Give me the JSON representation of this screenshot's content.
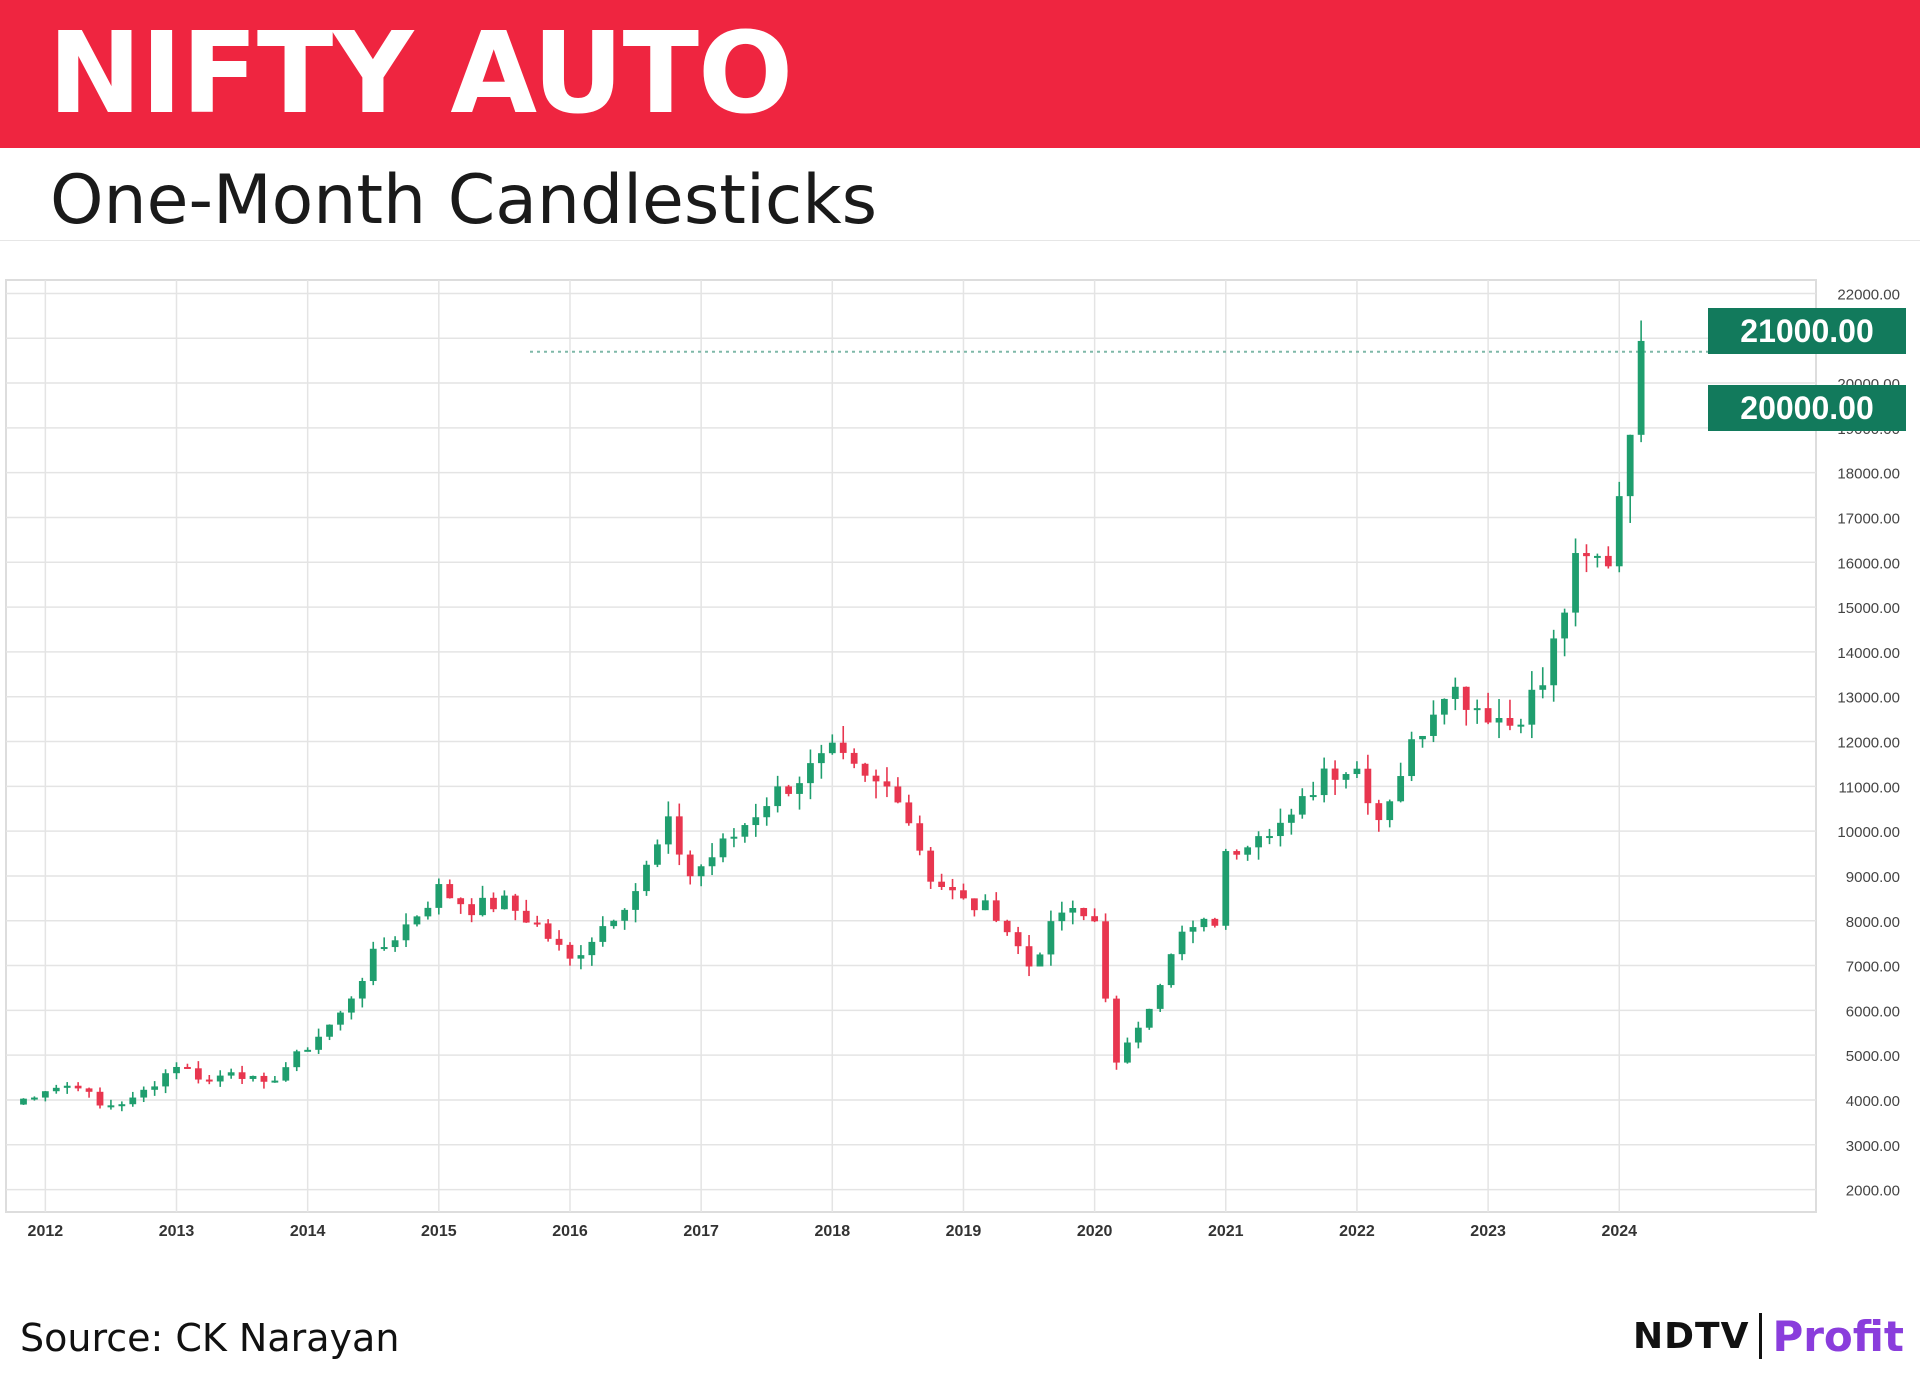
{
  "header": {
    "title": "NIFTY AUTO",
    "subtitle": "One-Month Candlesticks"
  },
  "footer": {
    "source": "Source: CK Narayan",
    "brand_ndtv": "NDTV",
    "brand_profit": "Profit"
  },
  "colors": {
    "header_band": "#ef2540",
    "up_candle": "#1f9e6e",
    "down_candle": "#e8364f",
    "label_bg": "#127a5c",
    "grid": "#e4e4e4"
  },
  "chart_data": {
    "type": "candlestick",
    "x_ticks": [
      "2012",
      "2013",
      "2014",
      "2015",
      "2016",
      "2017",
      "2018",
      "2019",
      "2020",
      "2021",
      "2022",
      "2023",
      "2024"
    ],
    "y_ticks": [
      "2000.00",
      "3000.00",
      "4000.00",
      "5000.00",
      "6000.00",
      "7000.00",
      "8000.00",
      "9000.00",
      "10000.00",
      "11000.00",
      "12000.00",
      "13000.00",
      "14000.00",
      "15000.00",
      "16000.00",
      "17000.00",
      "18000.00",
      "19000.00",
      "20000.00",
      "21000.00",
      "22000.00"
    ],
    "ylim": [
      1500,
      22300
    ],
    "xlim": [
      2011.7,
      2025.5
    ],
    "grid": true,
    "price_labels": [
      {
        "value": 21000,
        "text": "21000.00"
      },
      {
        "value": 20000,
        "text": "20000.00"
      }
    ],
    "reference_line": 20700,
    "monthly_close": [
      {
        "year": 2011.75,
        "close": 3900
      },
      {
        "year": 2012.0,
        "close": 4250
      },
      {
        "year": 2012.25,
        "close": 4350
      },
      {
        "year": 2012.42,
        "close": 3850
      },
      {
        "year": 2012.67,
        "close": 4000
      },
      {
        "year": 2013.0,
        "close": 4800
      },
      {
        "year": 2013.25,
        "close": 4400
      },
      {
        "year": 2013.42,
        "close": 4700
      },
      {
        "year": 2013.67,
        "close": 4300
      },
      {
        "year": 2014.0,
        "close": 5200
      },
      {
        "year": 2014.25,
        "close": 5900
      },
      {
        "year": 2014.5,
        "close": 7200
      },
      {
        "year": 2014.75,
        "close": 7900
      },
      {
        "year": 2015.0,
        "close": 8700
      },
      {
        "year": 2015.25,
        "close": 8300
      },
      {
        "year": 2015.5,
        "close": 8400
      },
      {
        "year": 2015.75,
        "close": 7900
      },
      {
        "year": 2016.0,
        "close": 7100
      },
      {
        "year": 2016.25,
        "close": 7900
      },
      {
        "year": 2016.5,
        "close": 8700
      },
      {
        "year": 2016.75,
        "close": 10100
      },
      {
        "year": 2016.92,
        "close": 9000
      },
      {
        "year": 2017.25,
        "close": 9900
      },
      {
        "year": 2017.5,
        "close": 10700
      },
      {
        "year": 2017.75,
        "close": 11200
      },
      {
        "year": 2018.0,
        "close": 11700
      },
      {
        "year": 2018.25,
        "close": 11100
      },
      {
        "year": 2018.5,
        "close": 10900
      },
      {
        "year": 2018.75,
        "close": 9000
      },
      {
        "year": 2019.0,
        "close": 8400
      },
      {
        "year": 2019.25,
        "close": 8200
      },
      {
        "year": 2019.5,
        "close": 7000
      },
      {
        "year": 2019.75,
        "close": 8200
      },
      {
        "year": 2020.0,
        "close": 8000
      },
      {
        "year": 2020.17,
        "close": 4700
      },
      {
        "year": 2020.42,
        "close": 6200
      },
      {
        "year": 2020.67,
        "close": 7700
      },
      {
        "year": 2020.92,
        "close": 8000
      },
      {
        "year": 2021.0,
        "close": 9400
      },
      {
        "year": 2021.25,
        "close": 10100
      },
      {
        "year": 2021.5,
        "close": 10200
      },
      {
        "year": 2021.75,
        "close": 11400
      },
      {
        "year": 2022.0,
        "close": 11400
      },
      {
        "year": 2022.17,
        "close": 10300
      },
      {
        "year": 2022.42,
        "close": 11900
      },
      {
        "year": 2022.67,
        "close": 13300
      },
      {
        "year": 2022.92,
        "close": 12800
      },
      {
        "year": 2023.17,
        "close": 12400
      },
      {
        "year": 2023.42,
        "close": 13300
      },
      {
        "year": 2023.67,
        "close": 15900
      },
      {
        "year": 2023.92,
        "close": 16100
      },
      {
        "year": 2024.0,
        "close": 17600
      },
      {
        "year": 2024.08,
        "close": 19200
      },
      {
        "year": 2024.17,
        "close": 20600
      }
    ]
  }
}
